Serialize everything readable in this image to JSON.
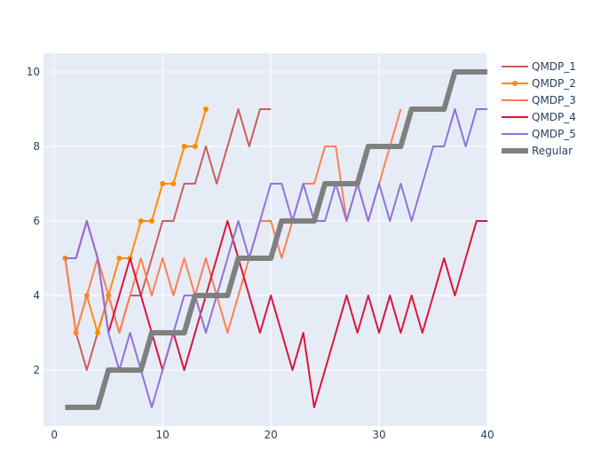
{
  "chart_data": {
    "type": "line",
    "title": "",
    "xlabel": "",
    "ylabel": "",
    "xlim": [
      -1,
      40
    ],
    "ylim": [
      0.5,
      10.5
    ],
    "x_ticks": [
      0,
      10,
      20,
      30,
      40
    ],
    "y_ticks": [
      2,
      4,
      6,
      8,
      10
    ],
    "grid": true,
    "legend_position": "top-right",
    "series": [
      {
        "name": "QMDP_1",
        "color": "#cd5c5c",
        "markers": false,
        "x": [
          1,
          2,
          3,
          4,
          5,
          6,
          7,
          8,
          9,
          10,
          11,
          12,
          13,
          14,
          15,
          16,
          17,
          18,
          19,
          20
        ],
        "y": [
          5,
          3,
          2,
          3,
          4,
          3,
          4,
          4,
          5,
          6,
          6,
          7,
          7,
          8,
          7,
          8,
          9,
          8,
          9,
          9
        ]
      },
      {
        "name": "QMDP_2",
        "color": "#ff8c00",
        "markers": true,
        "x": [
          1,
          2,
          3,
          4,
          5,
          6,
          7,
          8,
          9,
          10,
          11,
          12,
          13,
          14
        ],
        "y": [
          5,
          3,
          4,
          3,
          4,
          5,
          5,
          6,
          6,
          7,
          7,
          8,
          8,
          9
        ]
      },
      {
        "name": "QMDP_3",
        "color": "#ff7f50",
        "markers": false,
        "x": [
          1,
          2,
          3,
          4,
          5,
          6,
          7,
          8,
          9,
          10,
          11,
          12,
          13,
          14,
          15,
          16,
          17,
          18,
          19,
          20,
          21,
          22,
          23,
          24,
          25,
          26,
          27,
          28,
          29,
          30,
          31,
          32
        ],
        "y": [
          5,
          3,
          4,
          5,
          4,
          3,
          4,
          5,
          4,
          5,
          4,
          5,
          4,
          5,
          4,
          3,
          4,
          5,
          6,
          6,
          5,
          6,
          7,
          7,
          8,
          8,
          6,
          7,
          6,
          7,
          8,
          9
        ]
      },
      {
        "name": "QMDP_4",
        "color": "#dc143c",
        "markers": false,
        "x": [
          1,
          2,
          3,
          4,
          5,
          6,
          7,
          8,
          9,
          10,
          11,
          12,
          13,
          14,
          15,
          16,
          17,
          18,
          19,
          20,
          21,
          22,
          23,
          24,
          25,
          26,
          27,
          28,
          29,
          30,
          31,
          32,
          33,
          34,
          35,
          36,
          37,
          38,
          39,
          40
        ],
        "y": [
          5,
          5,
          6,
          5,
          3,
          4,
          5,
          4,
          3,
          2,
          3,
          2,
          3,
          4,
          5,
          6,
          5,
          4,
          3,
          4,
          3,
          2,
          3,
          1,
          2,
          3,
          4,
          3,
          4,
          3,
          4,
          3,
          4,
          3,
          4,
          5,
          4,
          5,
          6,
          6
        ]
      },
      {
        "name": "QMDP_5",
        "color": "#9370db",
        "markers": false,
        "x": [
          1,
          2,
          3,
          4,
          5,
          6,
          7,
          8,
          9,
          10,
          11,
          12,
          13,
          14,
          15,
          16,
          17,
          18,
          19,
          20,
          21,
          22,
          23,
          24,
          25,
          26,
          27,
          28,
          29,
          30,
          31,
          32,
          33,
          34,
          35,
          36,
          37,
          38,
          39,
          40
        ],
        "y": [
          5,
          5,
          6,
          5,
          3,
          2,
          3,
          2,
          1,
          2,
          3,
          4,
          4,
          3,
          4,
          5,
          6,
          5,
          6,
          7,
          7,
          6,
          7,
          6,
          6,
          7,
          6,
          7,
          6,
          7,
          6,
          7,
          6,
          7,
          8,
          8,
          9,
          8,
          9,
          9
        ]
      },
      {
        "name": "Regular",
        "color": "#808080",
        "markers": false,
        "width": 6,
        "x": [
          1,
          2,
          3,
          4,
          5,
          6,
          7,
          8,
          9,
          10,
          11,
          12,
          13,
          14,
          15,
          16,
          17,
          18,
          19,
          20,
          21,
          22,
          23,
          24,
          25,
          26,
          27,
          28,
          29,
          30,
          31,
          32,
          33,
          34,
          35,
          36,
          37,
          38,
          39,
          40
        ],
        "y": [
          1,
          1,
          1,
          1,
          2,
          2,
          2,
          2,
          3,
          3,
          3,
          3,
          4,
          4,
          4,
          4,
          5,
          5,
          5,
          5,
          6,
          6,
          6,
          6,
          7,
          7,
          7,
          7,
          8,
          8,
          8,
          8,
          9,
          9,
          9,
          9,
          10,
          10,
          10,
          10
        ]
      }
    ]
  }
}
